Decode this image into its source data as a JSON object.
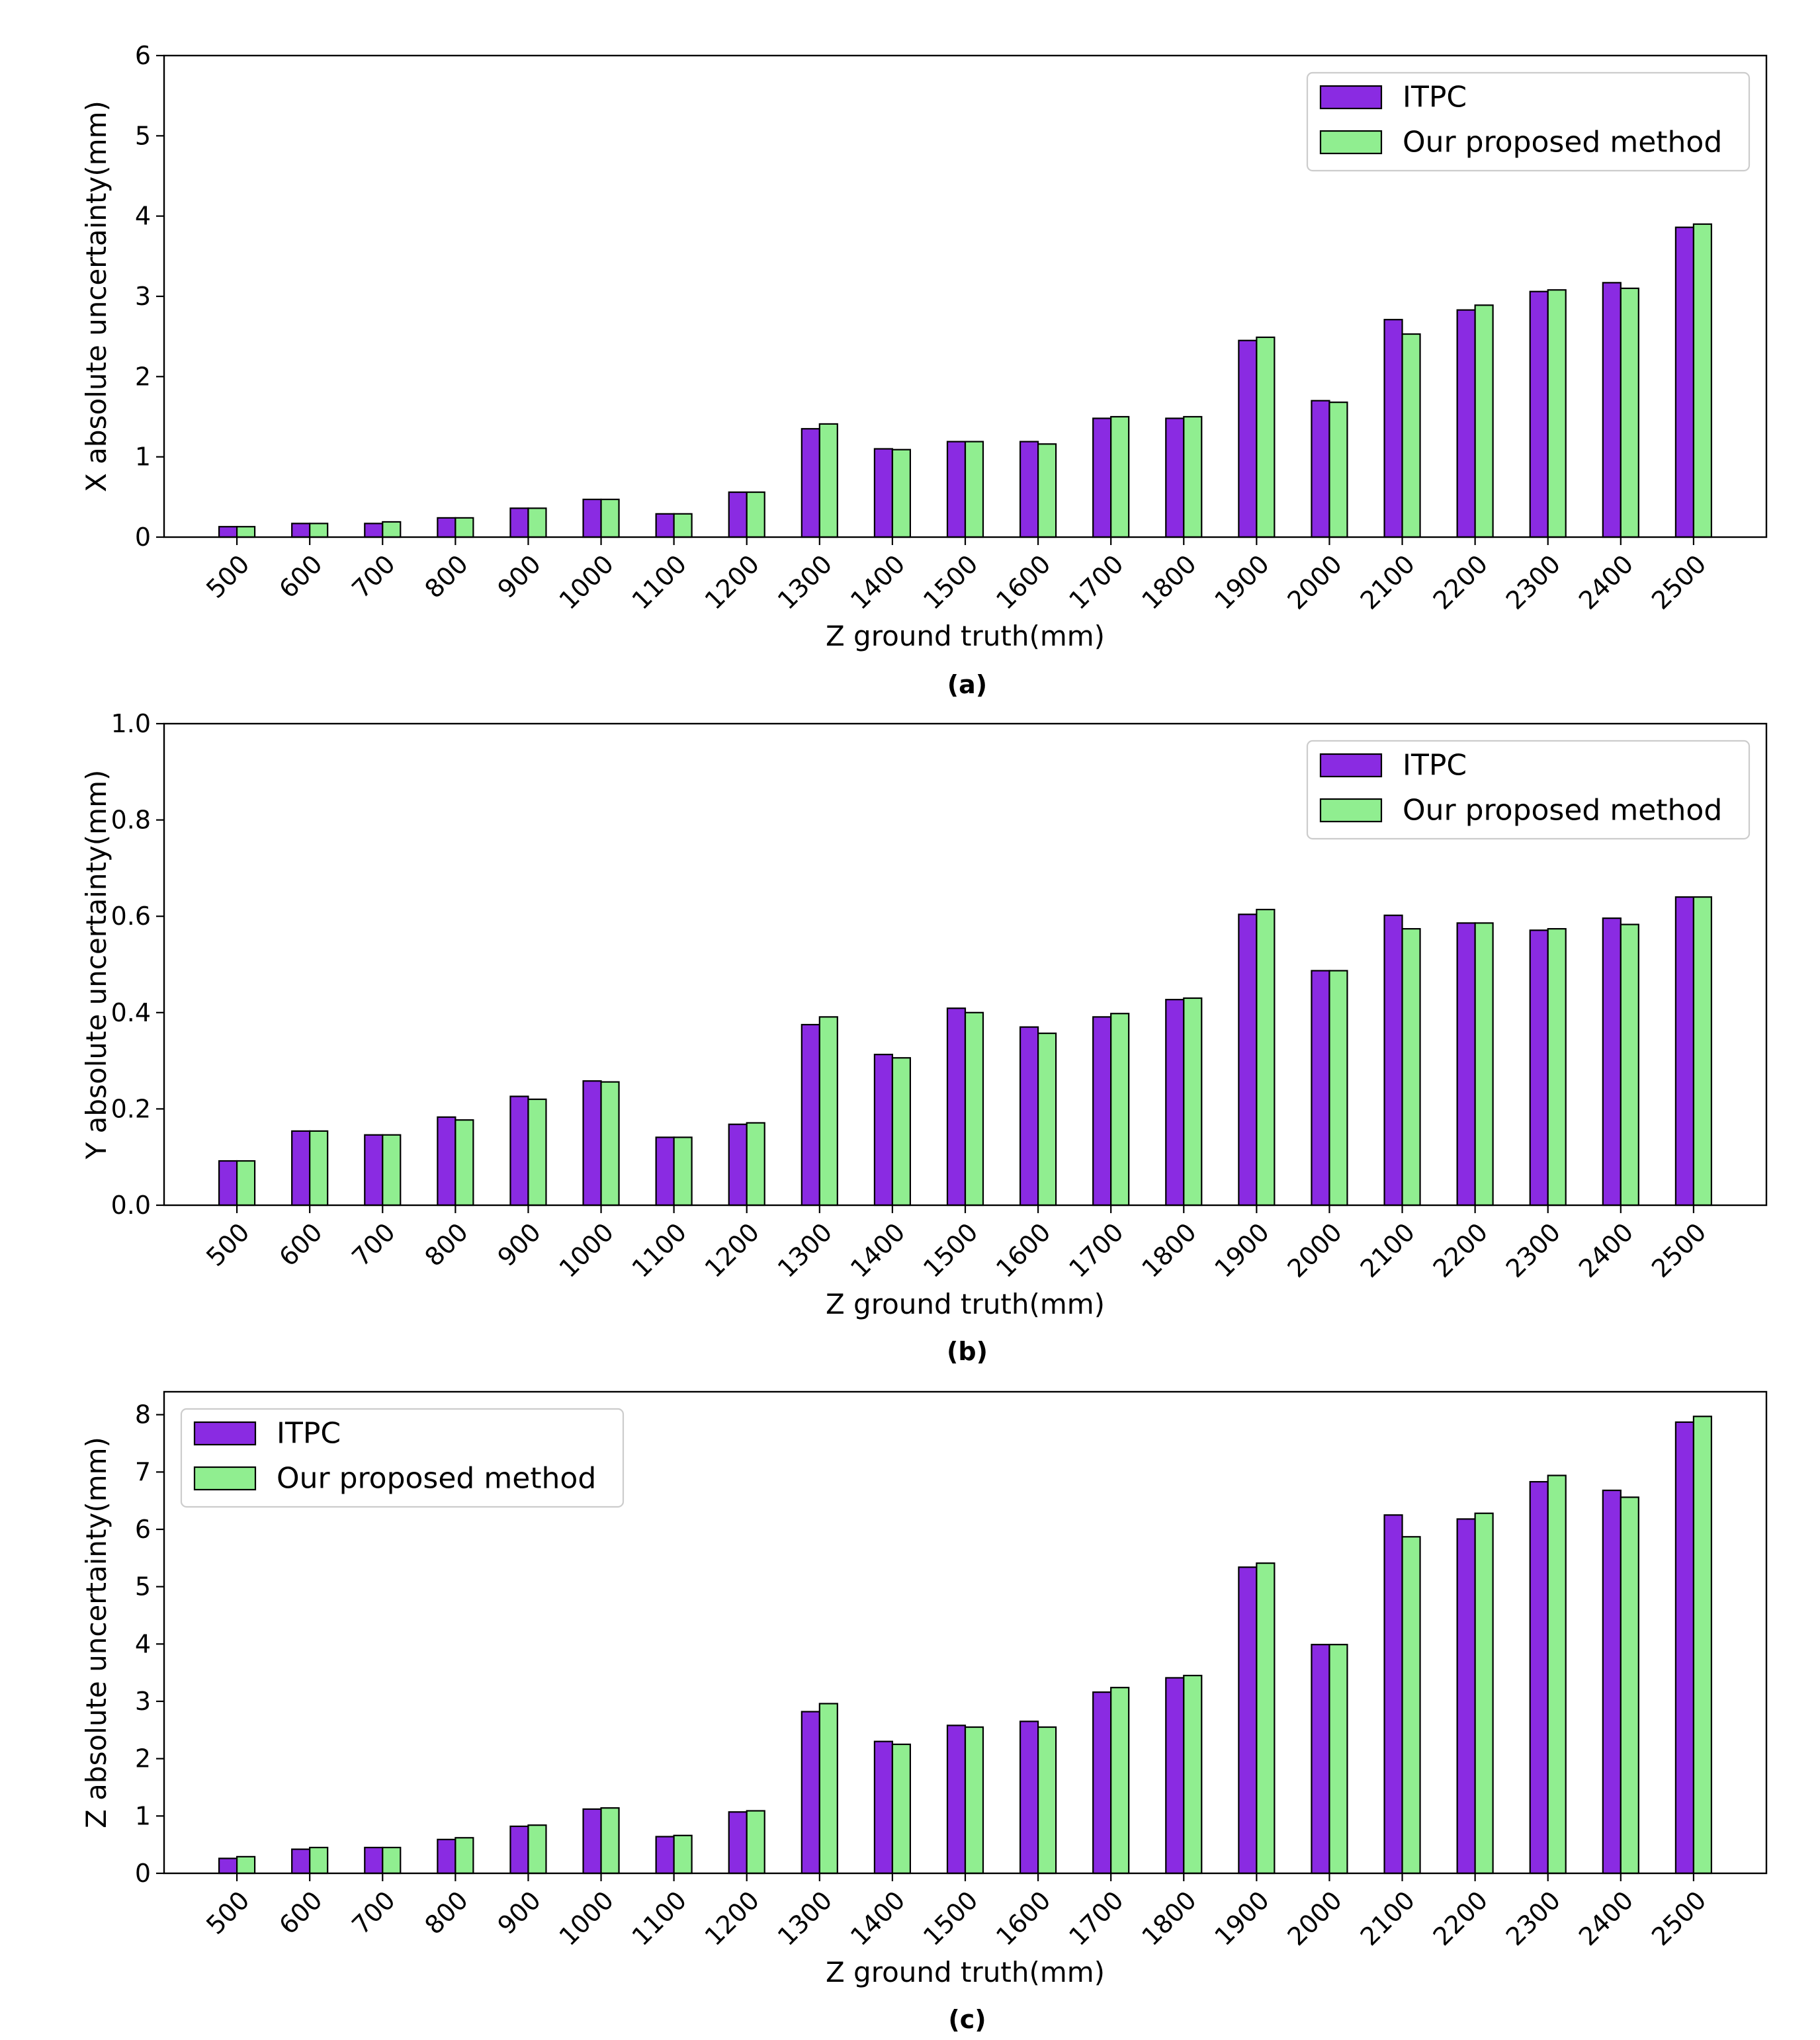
{
  "colors": {
    "itpc": "#8a2be2",
    "proposed": "#90ee90",
    "edge": "#000000"
  },
  "chart_data": [
    {
      "type": "bar",
      "caption": "(a)",
      "xlabel": "Z ground truth(mm)",
      "ylabel": "X absolute uncertainty(mm)",
      "ylim": [
        0,
        6
      ],
      "yticks": [
        "0",
        "1",
        "2",
        "3",
        "4",
        "5",
        "6"
      ],
      "legend_position": "top-right",
      "grid": false,
      "categories": [
        "500",
        "600",
        "700",
        "800",
        "900",
        "1000",
        "1100",
        "1200",
        "1300",
        "1400",
        "1500",
        "1600",
        "1700",
        "1800",
        "1900",
        "2000",
        "2100",
        "2200",
        "2300",
        "2400",
        "2500"
      ],
      "series": [
        {
          "name": "ITPC",
          "values": [
            0.13,
            0.17,
            0.17,
            0.24,
            0.36,
            0.47,
            0.29,
            0.56,
            1.35,
            1.1,
            1.19,
            1.19,
            1.48,
            1.48,
            2.45,
            1.7,
            2.71,
            2.83,
            3.06,
            3.17,
            3.86
          ]
        },
        {
          "name": "Our proposed method",
          "values": [
            0.13,
            0.17,
            0.19,
            0.24,
            0.36,
            0.47,
            0.29,
            0.56,
            1.41,
            1.09,
            1.19,
            1.16,
            1.5,
            1.5,
            2.49,
            1.68,
            2.53,
            2.89,
            3.08,
            3.1,
            3.9
          ]
        }
      ]
    },
    {
      "type": "bar",
      "caption": "(b)",
      "xlabel": "Z ground truth(mm)",
      "ylabel": "Y absolute uncertainty(mm)",
      "ylim": [
        0,
        1.0
      ],
      "yticks": [
        "0.0",
        "0.2",
        "0.4",
        "0.6",
        "0.8",
        "1.0"
      ],
      "legend_position": "top-right",
      "grid": false,
      "categories": [
        "500",
        "600",
        "700",
        "800",
        "900",
        "1000",
        "1100",
        "1200",
        "1300",
        "1400",
        "1500",
        "1600",
        "1700",
        "1800",
        "1900",
        "2000",
        "2100",
        "2200",
        "2300",
        "2400",
        "2500"
      ],
      "series": [
        {
          "name": "ITPC",
          "values": [
            0.092,
            0.154,
            0.146,
            0.183,
            0.226,
            0.258,
            0.141,
            0.168,
            0.375,
            0.313,
            0.409,
            0.37,
            0.391,
            0.427,
            0.604,
            0.487,
            0.602,
            0.586,
            0.571,
            0.596,
            0.64
          ]
        },
        {
          "name": "Our proposed method",
          "values": [
            0.092,
            0.154,
            0.146,
            0.177,
            0.22,
            0.256,
            0.141,
            0.171,
            0.391,
            0.306,
            0.4,
            0.357,
            0.398,
            0.43,
            0.614,
            0.487,
            0.574,
            0.586,
            0.574,
            0.583,
            0.64
          ]
        }
      ]
    },
    {
      "type": "bar",
      "caption": "(c)",
      "xlabel": "Z ground truth(mm)",
      "ylabel": "Z absolute uncertainty(mm)",
      "ylim": [
        0,
        8.4
      ],
      "yticks": [
        "0",
        "1",
        "2",
        "3",
        "4",
        "5",
        "6",
        "7",
        "8"
      ],
      "legend_position": "top-left",
      "grid": false,
      "categories": [
        "500",
        "600",
        "700",
        "800",
        "900",
        "1000",
        "1100",
        "1200",
        "1300",
        "1400",
        "1500",
        "1600",
        "1700",
        "1800",
        "1900",
        "2000",
        "2100",
        "2200",
        "2300",
        "2400",
        "2500"
      ],
      "series": [
        {
          "name": "ITPC",
          "values": [
            0.26,
            0.42,
            0.45,
            0.59,
            0.82,
            1.12,
            0.64,
            1.07,
            2.82,
            2.3,
            2.58,
            2.65,
            3.16,
            3.41,
            5.34,
            3.99,
            6.25,
            6.18,
            6.83,
            6.68,
            7.87
          ]
        },
        {
          "name": "Our proposed method",
          "values": [
            0.29,
            0.45,
            0.45,
            0.62,
            0.84,
            1.14,
            0.66,
            1.09,
            2.96,
            2.25,
            2.55,
            2.55,
            3.24,
            3.45,
            5.41,
            3.99,
            5.87,
            6.28,
            6.94,
            6.56,
            7.97
          ]
        }
      ]
    }
  ]
}
